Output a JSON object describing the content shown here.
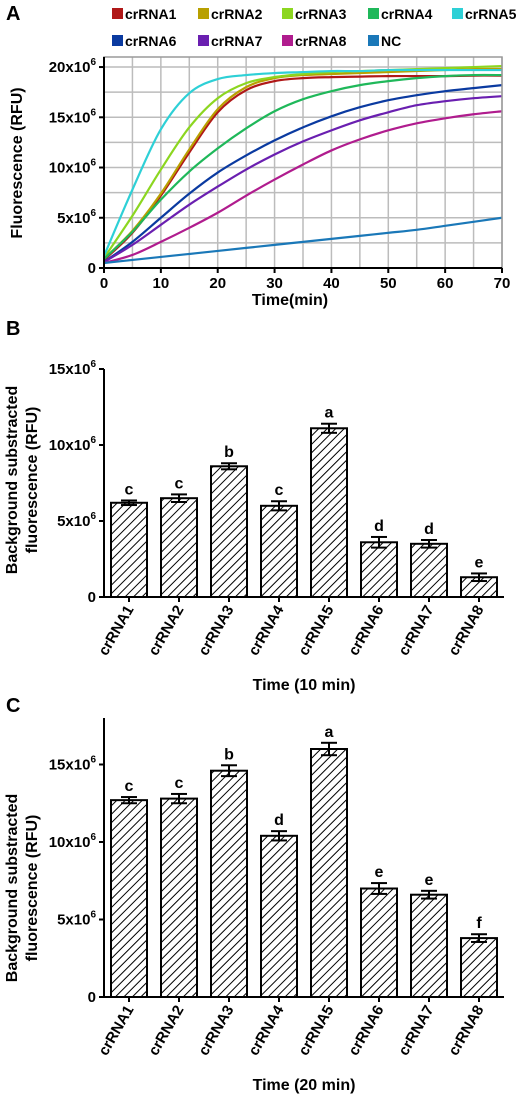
{
  "chart_data": [
    {
      "panel": "A",
      "type": "line",
      "xlabel": "Time(min)",
      "ylabel": "Fluorescence (RFU)",
      "xlim": [
        0,
        70
      ],
      "ylim": [
        0,
        21000000
      ],
      "x_ticks": [
        "0",
        "10",
        "20",
        "30",
        "40",
        "50",
        "60",
        "70"
      ],
      "y_ticks": [
        {
          "value": 0,
          "base": "0",
          "exp": ""
        },
        {
          "value": 5000000,
          "base": "5x10",
          "exp": "6"
        },
        {
          "value": 10000000,
          "base": "10x10",
          "exp": "6"
        },
        {
          "value": 15000000,
          "base": "15x10",
          "exp": "6"
        },
        {
          "value": 20000000,
          "base": "20x10",
          "exp": "6"
        }
      ],
      "grid": true,
      "legend_position": "top",
      "x": [
        0,
        5,
        10,
        15,
        20,
        25,
        30,
        35,
        40,
        45,
        50,
        55,
        60,
        65,
        70
      ],
      "series": [
        {
          "name": "crRNA1",
          "color": "#b01818",
          "values": [
            800000,
            3500000,
            7200000,
            11500000,
            15500000,
            17700000,
            18600000,
            18900000,
            19000000,
            19050000,
            19100000,
            19100000,
            19100000,
            19150000,
            19150000
          ]
        },
        {
          "name": "crRNA2",
          "color": "#b8a000",
          "values": [
            900000,
            3700000,
            7400000,
            11800000,
            15800000,
            18000000,
            18900000,
            19200000,
            19300000,
            19400000,
            19500000,
            19600000,
            19700000,
            19800000,
            19800000
          ]
        },
        {
          "name": "crRNA3",
          "color": "#8cd620",
          "values": [
            1000000,
            5200000,
            9800000,
            14000000,
            16900000,
            18400000,
            19000000,
            19300000,
            19500000,
            19600000,
            19700000,
            19800000,
            19900000,
            20000000,
            20100000
          ]
        },
        {
          "name": "crRNA4",
          "color": "#1fb85a",
          "values": [
            900000,
            3600000,
            6800000,
            9600000,
            11900000,
            13900000,
            15600000,
            16800000,
            17600000,
            18200000,
            18600000,
            18900000,
            19100000,
            19200000,
            19200000
          ]
        },
        {
          "name": "crRNA5",
          "color": "#2ed0d6",
          "values": [
            1200000,
            7800000,
            13800000,
            17400000,
            18800000,
            19200000,
            19400000,
            19500000,
            19600000,
            19600000,
            19700000,
            19700000,
            19700000,
            19700000,
            19700000
          ]
        },
        {
          "name": "crRNA6",
          "color": "#0a3aa0",
          "values": [
            600000,
            2600000,
            5000000,
            7400000,
            9500000,
            11200000,
            12700000,
            14000000,
            15100000,
            16000000,
            16700000,
            17200000,
            17600000,
            17900000,
            18200000
          ]
        },
        {
          "name": "crRNA7",
          "color": "#6a1fb0",
          "values": [
            600000,
            2300000,
            4300000,
            6300000,
            8100000,
            9800000,
            11300000,
            12600000,
            13700000,
            14700000,
            15500000,
            16200000,
            16600000,
            16900000,
            17100000
          ]
        },
        {
          "name": "crRNA8",
          "color": "#b01c8e",
          "values": [
            500000,
            1300000,
            2600000,
            4000000,
            5500000,
            7200000,
            8800000,
            10300000,
            11700000,
            12800000,
            13700000,
            14400000,
            14900000,
            15300000,
            15600000
          ]
        },
        {
          "name": "NC",
          "color": "#1a78b8",
          "values": [
            500000,
            800000,
            1100000,
            1400000,
            1700000,
            2000000,
            2300000,
            2600000,
            2900000,
            3200000,
            3500000,
            3800000,
            4200000,
            4600000,
            5000000
          ]
        }
      ]
    },
    {
      "panel": "B",
      "type": "bar",
      "xlabel": "Time (10 min)",
      "ylabel_line1": "Background substracted",
      "ylabel_line2": "fluorescence (RFU)",
      "ylim": [
        0,
        15000000
      ],
      "y_ticks": [
        {
          "value": 0,
          "base": "0",
          "exp": ""
        },
        {
          "value": 5000000,
          "base": "5x10",
          "exp": "6"
        },
        {
          "value": 10000000,
          "base": "10x10",
          "exp": "6"
        },
        {
          "value": 15000000,
          "base": "15x10",
          "exp": "6"
        }
      ],
      "categories": [
        "crRNA1",
        "crRNA2",
        "crRNA3",
        "crRNA4",
        "crRNA5",
        "crRNA6",
        "crRNA7",
        "crRNA8"
      ],
      "values": [
        6200000,
        6500000,
        8600000,
        6000000,
        11100000,
        3600000,
        3500000,
        1300000
      ],
      "errors": [
        150000,
        250000,
        200000,
        300000,
        300000,
        350000,
        250000,
        250000
      ],
      "labels": [
        "c",
        "c",
        "b",
        "c",
        "a",
        "d",
        "d",
        "e"
      ]
    },
    {
      "panel": "C",
      "type": "bar",
      "xlabel": "Time (20 min)",
      "ylabel_line1": "Background substracted",
      "ylabel_line2": "fluorescence (RFU)",
      "ylim": [
        0,
        18000000
      ],
      "y_ticks": [
        {
          "value": 0,
          "base": "0",
          "exp": ""
        },
        {
          "value": 5000000,
          "base": "5x10",
          "exp": "6"
        },
        {
          "value": 10000000,
          "base": "10x10",
          "exp": "6"
        },
        {
          "value": 15000000,
          "base": "15x10",
          "exp": "6"
        }
      ],
      "categories": [
        "crRNA1",
        "crRNA2",
        "crRNA3",
        "crRNA4",
        "crRNA5",
        "crRNA6",
        "crRNA7",
        "crRNA8"
      ],
      "values": [
        12700000,
        12800000,
        14600000,
        10400000,
        16000000,
        7000000,
        6600000,
        3800000
      ],
      "errors": [
        200000,
        300000,
        350000,
        300000,
        400000,
        350000,
        250000,
        250000
      ],
      "labels": [
        "c",
        "c",
        "b",
        "d",
        "a",
        "e",
        "e",
        "f"
      ]
    }
  ]
}
